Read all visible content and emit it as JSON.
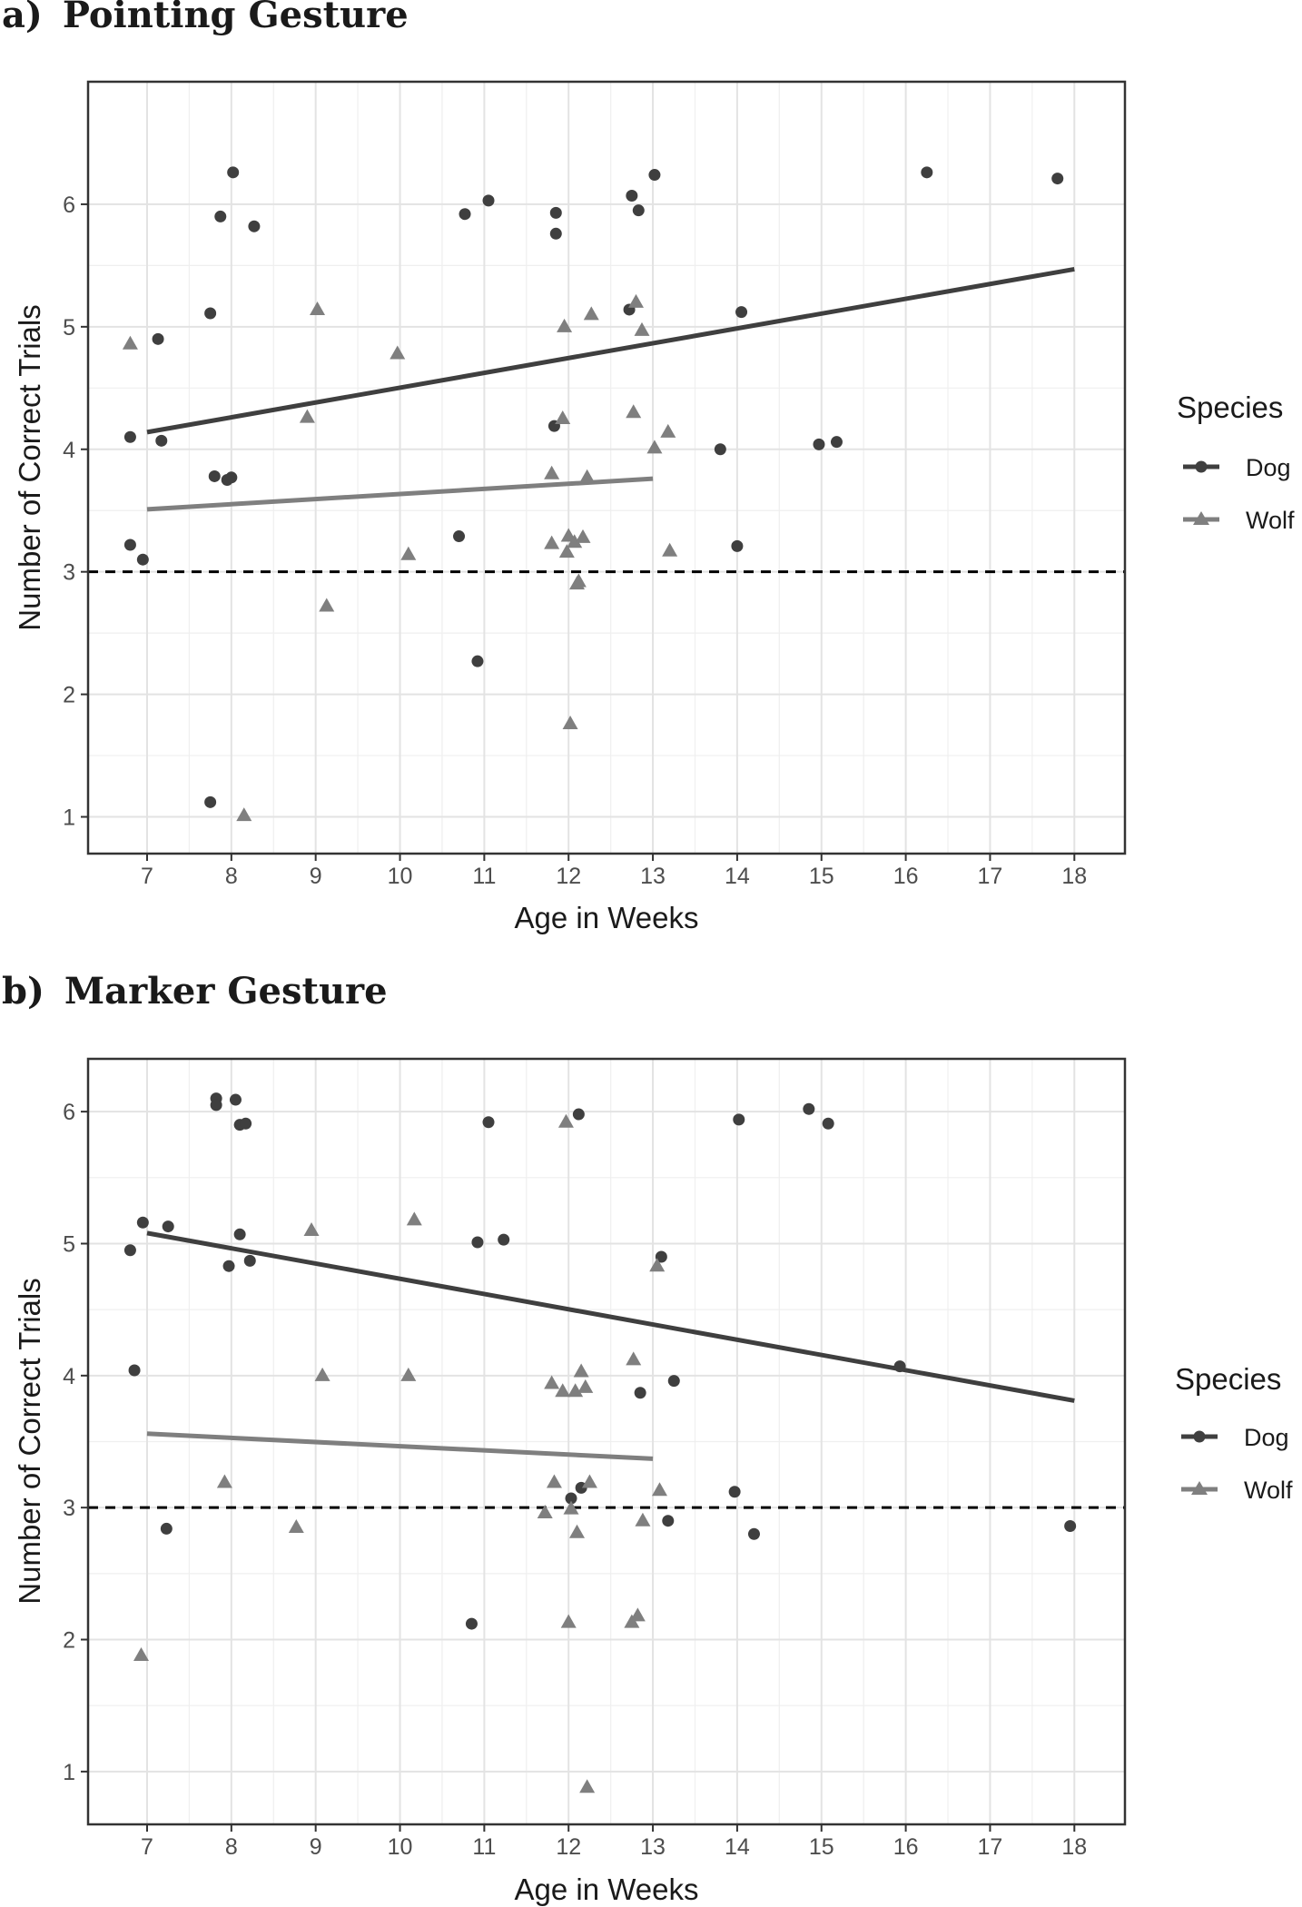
{
  "colors": {
    "dog": "#3f3f3f",
    "wolf": "#7f7f7f",
    "grid": "#e3e3e3",
    "border": "#333333",
    "reference": "#000000"
  },
  "chart_data": [
    {
      "type": "scatter",
      "panel_label": "a)",
      "title": "Pointing Gesture",
      "xlabel": "Age in Weeks",
      "ylabel": "Number of Correct Trials",
      "xlim": [
        6.3,
        18.6
      ],
      "ylim": [
        0.7,
        7.0
      ],
      "xticks": [
        7,
        8,
        9,
        10,
        11,
        12,
        13,
        14,
        15,
        16,
        17,
        18
      ],
      "yticks": [
        1,
        2,
        3,
        4,
        5,
        6
      ],
      "reference_line_y": 3,
      "legend": {
        "title": "Species",
        "position": "right",
        "entries": [
          "Dog",
          "Wolf"
        ]
      },
      "series": [
        {
          "name": "Dog",
          "marker": "circle",
          "points": [
            [
              6.8,
              4.1
            ],
            [
              6.8,
              3.22
            ],
            [
              6.95,
              3.1
            ],
            [
              7.13,
              4.9
            ],
            [
              7.17,
              4.07
            ],
            [
              7.75,
              5.11
            ],
            [
              7.75,
              1.12
            ],
            [
              7.8,
              3.78
            ],
            [
              7.87,
              5.9
            ],
            [
              7.95,
              3.75
            ],
            [
              8.0,
              3.77
            ],
            [
              8.02,
              6.26
            ],
            [
              8.27,
              5.82
            ],
            [
              10.7,
              3.29
            ],
            [
              10.77,
              5.92
            ],
            [
              10.92,
              2.27
            ],
            [
              11.05,
              6.03
            ],
            [
              11.83,
              4.19
            ],
            [
              11.85,
              5.93
            ],
            [
              11.85,
              5.76
            ],
            [
              12.72,
              5.14
            ],
            [
              12.75,
              6.07
            ],
            [
              12.83,
              5.95
            ],
            [
              13.02,
              6.24
            ],
            [
              13.8,
              4.0
            ],
            [
              14.0,
              3.21
            ],
            [
              14.05,
              5.12
            ],
            [
              14.97,
              4.04
            ],
            [
              15.18,
              4.06
            ],
            [
              16.25,
              6.26
            ],
            [
              17.8,
              6.21
            ]
          ],
          "trend": [
            [
              7.0,
              4.14
            ],
            [
              18.0,
              5.47
            ]
          ]
        },
        {
          "name": "Wolf",
          "marker": "triangle",
          "points": [
            [
              6.8,
              4.86
            ],
            [
              8.15,
              1.01
            ],
            [
              8.9,
              4.26
            ],
            [
              9.02,
              5.14
            ],
            [
              9.13,
              2.72
            ],
            [
              9.97,
              4.78
            ],
            [
              10.1,
              3.14
            ],
            [
              11.8,
              3.8
            ],
            [
              11.8,
              3.23
            ],
            [
              11.93,
              4.25
            ],
            [
              11.95,
              5.0
            ],
            [
              11.98,
              3.16
            ],
            [
              12.0,
              3.29
            ],
            [
              12.02,
              1.76
            ],
            [
              12.07,
              3.24
            ],
            [
              12.1,
              2.9
            ],
            [
              12.12,
              2.92
            ],
            [
              12.17,
              3.28
            ],
            [
              12.22,
              3.77
            ],
            [
              12.27,
              5.1
            ],
            [
              12.77,
              4.3
            ],
            [
              12.8,
              5.2
            ],
            [
              12.87,
              4.97
            ],
            [
              13.02,
              4.01
            ],
            [
              13.18,
              4.14
            ],
            [
              13.2,
              3.17
            ]
          ],
          "trend": [
            [
              7.0,
              3.51
            ],
            [
              13.0,
              3.76
            ]
          ]
        }
      ]
    },
    {
      "type": "scatter",
      "panel_label": "b)",
      "title": "Marker Gesture",
      "xlabel": "Age in Weeks",
      "ylabel": "Number of Correct Trials",
      "xlim": [
        6.3,
        18.6
      ],
      "ylim": [
        0.6,
        6.4
      ],
      "xticks": [
        7,
        8,
        9,
        10,
        11,
        12,
        13,
        14,
        15,
        16,
        17,
        18
      ],
      "yticks": [
        1,
        2,
        3,
        4,
        5,
        6
      ],
      "reference_line_y": 3,
      "legend": {
        "title": "Species",
        "position": "right",
        "entries": [
          "Dog",
          "Wolf"
        ]
      },
      "series": [
        {
          "name": "Dog",
          "marker": "circle",
          "points": [
            [
              6.8,
              4.95
            ],
            [
              6.85,
              4.04
            ],
            [
              6.95,
              5.16
            ],
            [
              7.23,
              2.84
            ],
            [
              7.25,
              5.13
            ],
            [
              7.82,
              6.1
            ],
            [
              7.82,
              6.05
            ],
            [
              7.97,
              4.83
            ],
            [
              8.05,
              6.09
            ],
            [
              8.1,
              5.9
            ],
            [
              8.1,
              5.07
            ],
            [
              8.17,
              5.91
            ],
            [
              8.22,
              4.87
            ],
            [
              10.85,
              2.12
            ],
            [
              10.92,
              5.01
            ],
            [
              11.05,
              5.92
            ],
            [
              11.23,
              5.03
            ],
            [
              12.03,
              3.07
            ],
            [
              12.12,
              5.98
            ],
            [
              12.15,
              3.15
            ],
            [
              12.85,
              3.87
            ],
            [
              13.1,
              4.9
            ],
            [
              13.18,
              2.9
            ],
            [
              13.25,
              3.96
            ],
            [
              13.97,
              3.12
            ],
            [
              14.02,
              5.94
            ],
            [
              14.2,
              2.8
            ],
            [
              14.85,
              6.02
            ],
            [
              15.08,
              5.91
            ],
            [
              15.93,
              4.07
            ],
            [
              17.95,
              2.86
            ]
          ],
          "trend": [
            [
              7.0,
              5.08
            ],
            [
              18.0,
              3.81
            ]
          ]
        },
        {
          "name": "Wolf",
          "marker": "triangle",
          "points": [
            [
              6.93,
              1.88
            ],
            [
              7.92,
              3.19
            ],
            [
              8.77,
              2.85
            ],
            [
              8.95,
              5.1
            ],
            [
              9.08,
              4.0
            ],
            [
              10.1,
              4.0
            ],
            [
              10.17,
              5.18
            ],
            [
              11.72,
              2.96
            ],
            [
              11.8,
              3.94
            ],
            [
              11.83,
              3.19
            ],
            [
              11.93,
              3.88
            ],
            [
              11.97,
              5.92
            ],
            [
              12.0,
              2.13
            ],
            [
              12.03,
              2.99
            ],
            [
              12.08,
              3.88
            ],
            [
              12.1,
              2.81
            ],
            [
              12.15,
              4.03
            ],
            [
              12.2,
              3.91
            ],
            [
              12.22,
              0.88
            ],
            [
              12.25,
              3.19
            ],
            [
              12.75,
              2.13
            ],
            [
              12.77,
              4.12
            ],
            [
              12.82,
              2.18
            ],
            [
              12.88,
              2.9
            ],
            [
              13.05,
              4.83
            ],
            [
              13.08,
              3.13
            ]
          ],
          "trend": [
            [
              7.0,
              3.56
            ],
            [
              13.0,
              3.37
            ]
          ]
        }
      ]
    }
  ]
}
